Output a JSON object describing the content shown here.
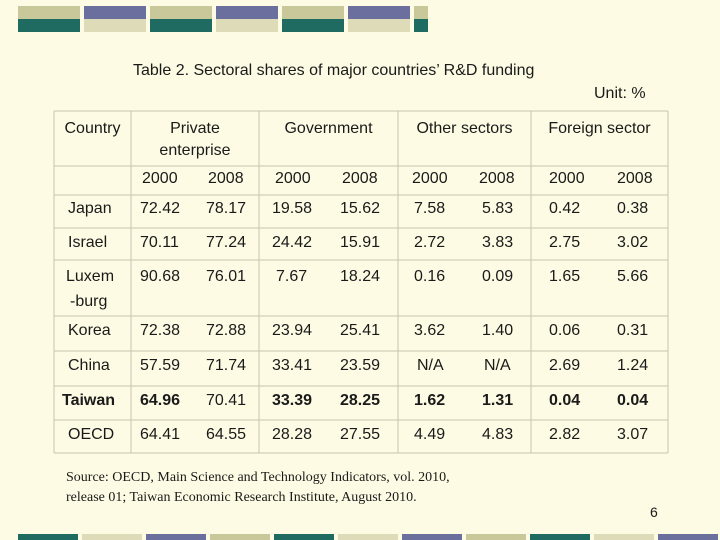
{
  "title": "Table 2. Sectoral shares of major countries’ R&D funding",
  "unit": "Unit: %",
  "headers": {
    "country": "Country",
    "private": [
      "Private",
      "enterprise"
    ],
    "government": "Government",
    "other": "Other sectors",
    "foreign": "Foreign sector",
    "years": [
      "2000",
      "2008",
      "2000",
      "2008",
      "2000",
      "2008",
      "2000",
      "2008"
    ]
  },
  "rows": [
    {
      "country": [
        "Japan"
      ],
      "values": [
        "72.42",
        "78.17",
        "19.58",
        "15.62",
        "7.58",
        "5.83",
        "0.42",
        "0.38"
      ],
      "bold": false
    },
    {
      "country": [
        "Israel"
      ],
      "values": [
        "70.11",
        "77.24",
        "24.42",
        "15.91",
        "2.72",
        "3.83",
        "2.75",
        "3.02"
      ],
      "bold": false
    },
    {
      "country": [
        "Luxem",
        "-burg"
      ],
      "values": [
        "90.68",
        "76.01",
        "7.67",
        "18.24",
        "0.16",
        "0.09",
        "1.65",
        "5.66"
      ],
      "bold": false
    },
    {
      "country": [
        "Korea"
      ],
      "values": [
        "72.38",
        "72.88",
        "23.94",
        "25.41",
        "3.62",
        "1.40",
        "0.06",
        "0.31"
      ],
      "bold": false
    },
    {
      "country": [
        "China"
      ],
      "values": [
        "57.59",
        "71.74",
        "33.41",
        "23.59",
        "N/A",
        "N/A",
        "2.69",
        "1.24"
      ],
      "bold": false
    },
    {
      "country": [
        "Taiwan"
      ],
      "values": [
        "64.96",
        "70.41",
        "33.39",
        "28.25",
        "1.62",
        "1.31",
        "0.04",
        "0.04"
      ],
      "bold": true
    },
    {
      "country": [
        "OECD"
      ],
      "values": [
        "64.41",
        "64.55",
        "28.28",
        "27.55",
        "4.49",
        "4.83",
        "2.82",
        "3.07"
      ],
      "bold": false
    }
  ],
  "source": [
    "Source: OECD, Main Science and Technology Indicators, vol. 2010,",
    "release 01; Taiwan Economic Research Institute, August 2010."
  ],
  "page_number": "6",
  "colors": {
    "background": "#fdfbe3",
    "bar_tan": "#c9c89a",
    "bar_purple": "#6b6f9e",
    "bar_teal": "#1f6b62",
    "bar_beige": "#dedcb8",
    "grid": "#c8c6b0"
  }
}
